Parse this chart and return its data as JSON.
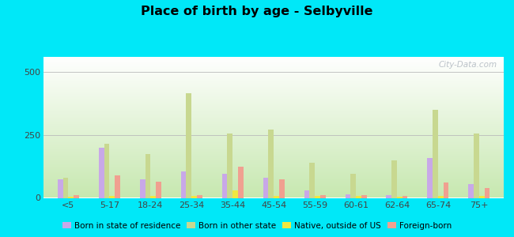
{
  "title": "Place of birth by age - Selbyville",
  "categories": [
    "<5",
    "5-17",
    "18-24",
    "25-34",
    "35-44",
    "45-54",
    "55-59",
    "60-61",
    "62-64",
    "65-74",
    "75+"
  ],
  "series": {
    "Born in state of residence": [
      75,
      200,
      75,
      105,
      95,
      80,
      30,
      15,
      10,
      160,
      55
    ],
    "Born in other state": [
      80,
      215,
      175,
      415,
      255,
      270,
      140,
      95,
      150,
      350,
      255
    ],
    "Native, outside of US": [
      5,
      8,
      8,
      8,
      30,
      8,
      8,
      8,
      5,
      8,
      8
    ],
    "Foreign-born": [
      10,
      90,
      65,
      10,
      125,
      75,
      12,
      12,
      8,
      60,
      38
    ]
  },
  "colors": {
    "Born in state of residence": "#c8a8e8",
    "Born in other state": "#c8d890",
    "Native, outside of US": "#f0e840",
    "Foreign-born": "#f0a090"
  },
  "ylim": [
    0,
    560
  ],
  "yticks": [
    0,
    250,
    500
  ],
  "bg_top": "#ffffff",
  "bg_bottom": "#c8e8b0",
  "outer_background": "#00e8f8",
  "watermark": "City-Data.com"
}
